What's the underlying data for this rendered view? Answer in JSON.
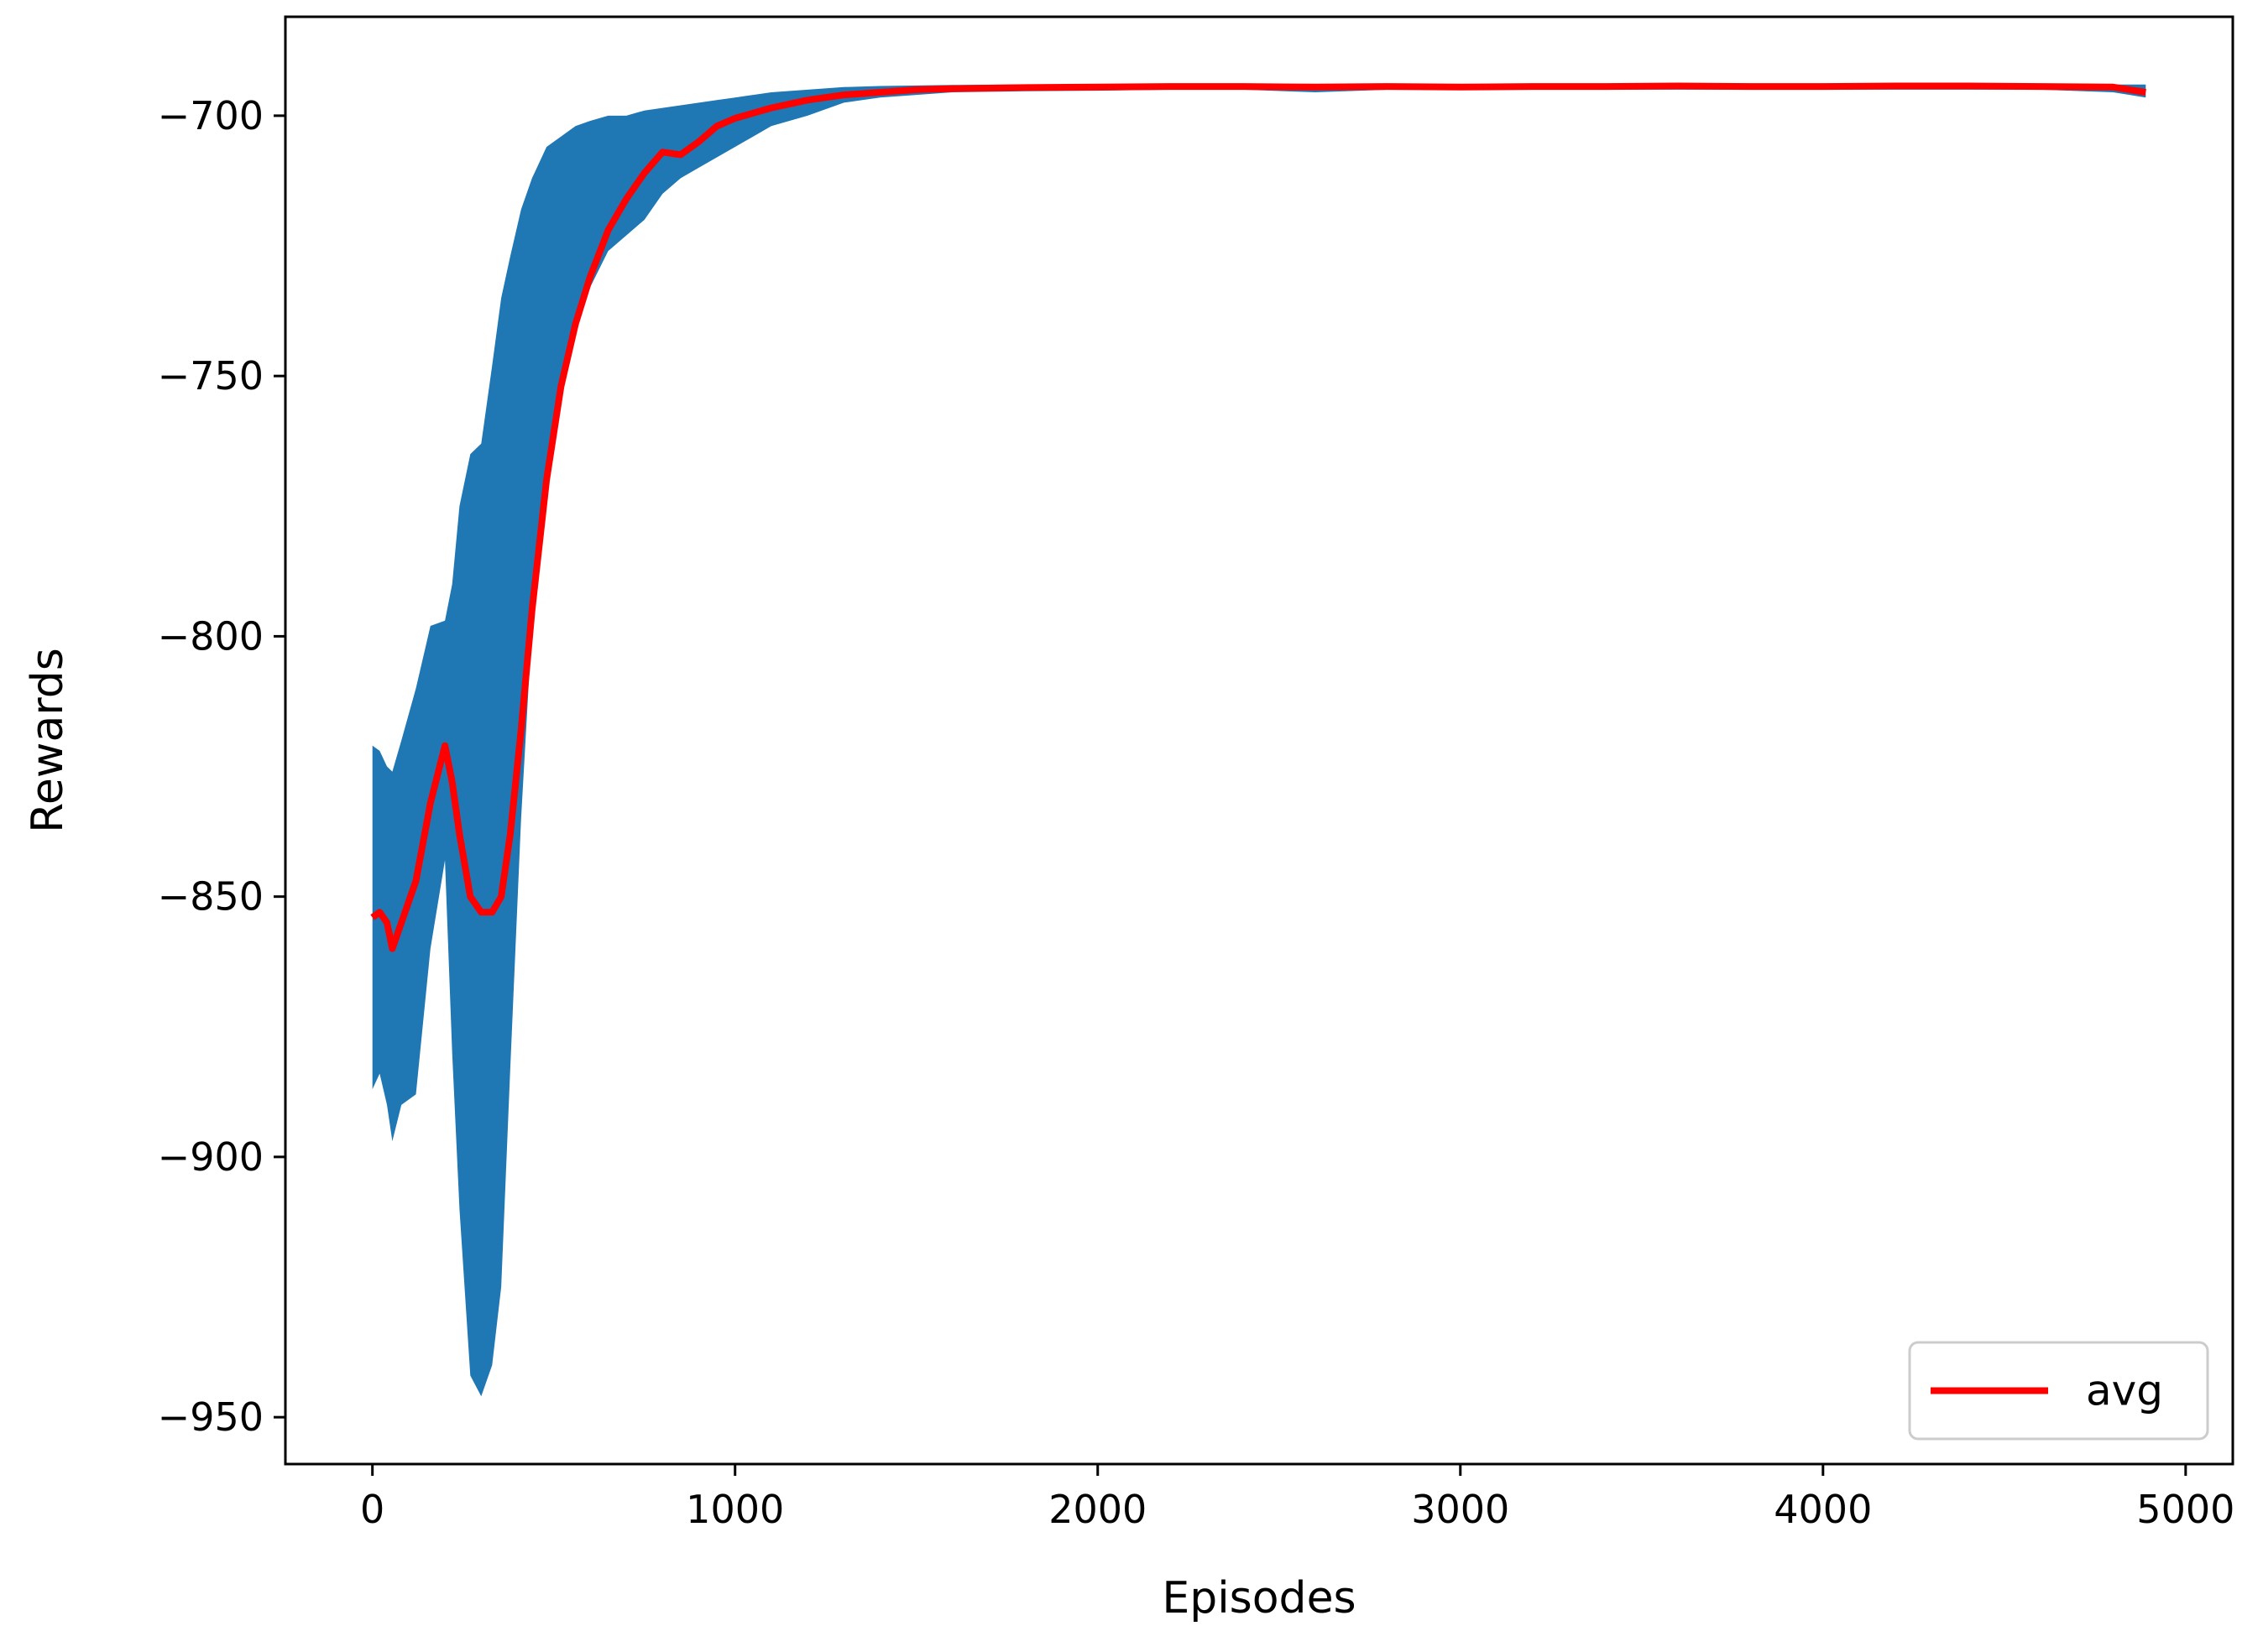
{
  "chart_data": {
    "type": "area",
    "xlabel": "Episodes",
    "ylabel": "Rewards",
    "xlim": [
      -240,
      5130
    ],
    "ylim": [
      -959,
      -681
    ],
    "xticks": [
      0,
      1000,
      2000,
      3000,
      4000,
      5000
    ],
    "yticks": [
      -700,
      -750,
      -800,
      -850,
      -900,
      -950
    ],
    "xtick_labels": [
      "0",
      "1000",
      "2000",
      "3000",
      "4000",
      "5000"
    ],
    "ytick_labels": [
      "−700",
      "−750",
      "−800",
      "−850",
      "−900",
      "−950"
    ],
    "grid": false,
    "legend": {
      "position": "bottom-right",
      "entries": [
        {
          "label": "avg",
          "color": "#ff0000"
        }
      ]
    },
    "series": [
      {
        "name": "avg",
        "color": "#ff0000",
        "band_color": "#1f77b4",
        "x": [
          0,
          20,
          40,
          55,
          80,
          120,
          160,
          200,
          220,
          240,
          270,
          300,
          330,
          355,
          380,
          410,
          440,
          480,
          520,
          560,
          600,
          650,
          700,
          750,
          800,
          850,
          900,
          950,
          1000,
          1050,
          1100,
          1200,
          1300,
          1400,
          1500,
          1600,
          1800,
          2000,
          2200,
          2400,
          2600,
          2800,
          3000,
          3200,
          3400,
          3600,
          3800,
          4000,
          4200,
          4400,
          4600,
          4800,
          4890
        ],
        "y": [
          -854,
          -853,
          -855,
          -860,
          -855,
          -847,
          -832,
          -821,
          -828,
          -838,
          -850,
          -853,
          -853,
          -850,
          -838,
          -818,
          -795,
          -770,
          -752,
          -740,
          -731,
          -722,
          -716,
          -711,
          -707,
          -707.5,
          -705,
          -702,
          -700.5,
          -699.5,
          -698.5,
          -697,
          -696,
          -695.5,
          -695,
          -694.8,
          -694.6,
          -694.5,
          -694.4,
          -694.4,
          -694.5,
          -694.4,
          -694.5,
          -694.4,
          -694.4,
          -694.3,
          -694.4,
          -694.4,
          -694.3,
          -694.3,
          -694.4,
          -694.5,
          -695.5
        ],
        "upper": [
          -821,
          -822,
          -825,
          -826,
          -820,
          -810,
          -798,
          -797,
          -790,
          -775,
          -765,
          -763,
          -748,
          -735,
          -727,
          -718,
          -712,
          -706,
          -704,
          -702,
          -701,
          -700,
          -700,
          -699,
          -698.5,
          -698,
          -697.5,
          -697,
          -696.5,
          -696,
          -695.5,
          -695,
          -694.5,
          -694.3,
          -694.2,
          -694.1,
          -694.0,
          -694.0,
          -694.0,
          -694.0,
          -694.0,
          -694.0,
          -694.0,
          -694.0,
          -694.0,
          -694.0,
          -694.0,
          -694.0,
          -694.0,
          -694.0,
          -694.0,
          -694.0,
          -694.0
        ],
        "lower": [
          -887,
          -884,
          -890,
          -897,
          -890,
          -888,
          -860,
          -843,
          -880,
          -910,
          -942,
          -946,
          -940,
          -925,
          -883,
          -835,
          -798,
          -773,
          -755,
          -742,
          -733,
          -726,
          -723,
          -720,
          -715,
          -712,
          -710,
          -708,
          -706,
          -704,
          -702,
          -700,
          -697.5,
          -696.5,
          -696,
          -695.5,
          -695.3,
          -695.2,
          -695.0,
          -695.0,
          -695.5,
          -695.0,
          -695.0,
          -695.0,
          -695.0,
          -695.0,
          -695.0,
          -695.0,
          -695.0,
          -695.0,
          -695.0,
          -695.5,
          -696.5
        ]
      }
    ]
  }
}
